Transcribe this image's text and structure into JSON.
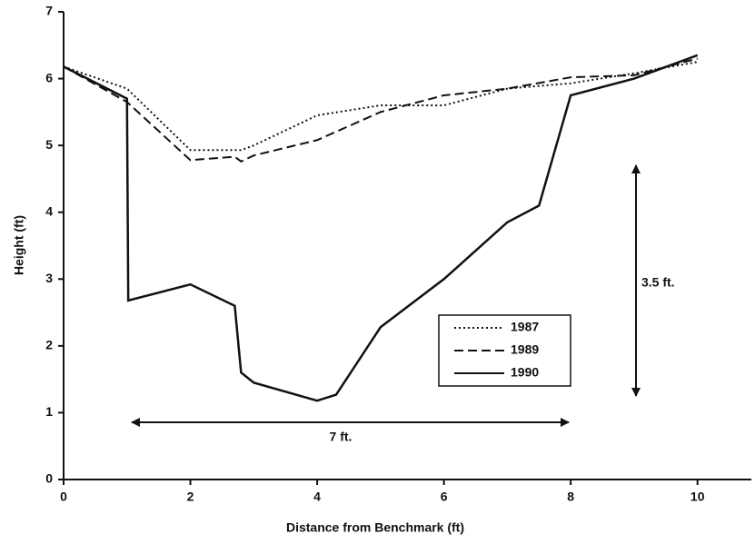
{
  "chart_data": {
    "type": "line",
    "xlabel": "Distance from Benchmark (ft)",
    "ylabel": "Height (ft)",
    "xlim": [
      0,
      10.85
    ],
    "xticks": [
      0,
      2,
      4,
      6,
      8,
      10
    ],
    "ylim": [
      0,
      7
    ],
    "yticks": [
      0,
      1,
      2,
      3,
      4,
      5,
      6,
      7
    ],
    "series": [
      {
        "name": "1987",
        "color": "#111111",
        "dash": "dotted",
        "x": [
          0,
          1,
          2,
          2.8,
          3,
          4,
          5,
          6,
          7,
          8,
          9,
          10
        ],
        "values": [
          6.18,
          5.85,
          4.93,
          4.93,
          5.0,
          5.45,
          5.6,
          5.6,
          5.85,
          5.93,
          6.08,
          6.25
        ]
      },
      {
        "name": "1989",
        "color": "#111111",
        "dash": "dashed",
        "x": [
          0,
          1,
          2,
          2.7,
          2.8,
          3,
          4,
          5,
          6,
          7,
          8,
          9,
          10
        ],
        "values": [
          6.18,
          5.65,
          4.78,
          4.83,
          4.76,
          4.85,
          5.08,
          5.5,
          5.75,
          5.85,
          6.02,
          6.05,
          6.3
        ]
      },
      {
        "name": "1990",
        "color": "#111111",
        "dash": "solid",
        "x": [
          0,
          1,
          1.02,
          2,
          2.7,
          2.8,
          3,
          4,
          4.3,
          5,
          6,
          7,
          7.5,
          8,
          9,
          10
        ],
        "values": [
          6.18,
          5.7,
          2.68,
          2.92,
          2.6,
          1.6,
          1.45,
          1.18,
          1.27,
          2.28,
          3.0,
          3.85,
          4.1,
          5.75,
          6.0,
          6.35
        ]
      }
    ],
    "annotations": [
      "7 ft.",
      "3.5 ft."
    ]
  }
}
